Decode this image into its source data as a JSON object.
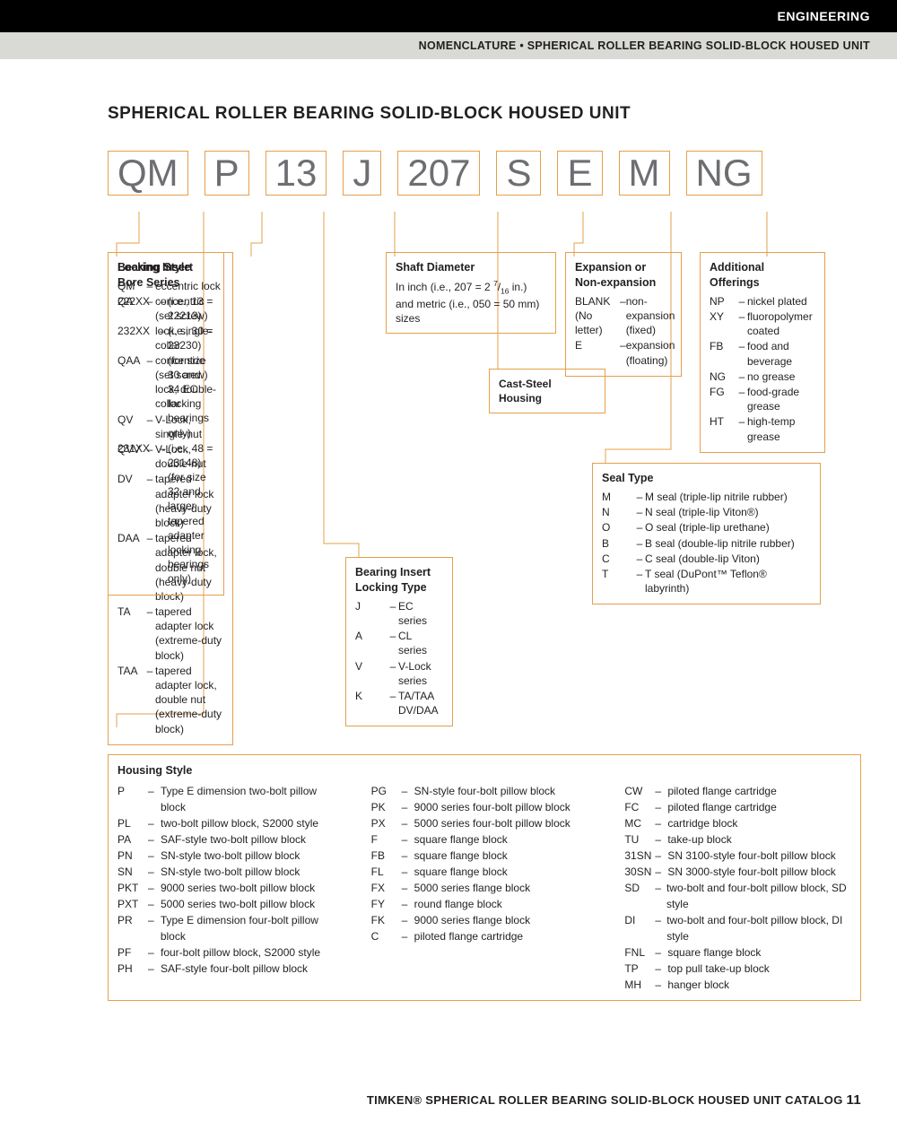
{
  "header": {
    "section": "ENGINEERING",
    "breadcrumb": "NOMENCLATURE • SPHERICAL ROLLER BEARING SOLID-BLOCK HOUSED UNIT"
  },
  "title": "SPHERICAL ROLLER BEARING SOLID-BLOCK HOUSED UNIT",
  "code_parts": [
    "QM",
    "P",
    "13",
    "J",
    "207",
    "S",
    "E",
    "M",
    "NG"
  ],
  "boxes": {
    "locking_style": {
      "title": "Locking Style",
      "items": [
        {
          "k": "QM",
          "v": "eccentric lock"
        },
        {
          "k": "QA",
          "v": "concentric (set screw) lock, single-collar"
        },
        {
          "k": "QAA",
          "v": "concentric (set screw) lock, double-collar"
        },
        {
          "k": "QV",
          "v": "V-Lock, single-nut"
        },
        {
          "k": "QVV",
          "v": "V-Lock, double-nut"
        },
        {
          "k": "DV",
          "v": "tapered adapter lock (heavy-duty block)"
        },
        {
          "k": "DAA",
          "v": "tapered adapter lock, double nut (heavy-duty block)"
        },
        {
          "k": "TA",
          "v": "tapered adapter lock (extreme-duty block)"
        },
        {
          "k": "TAA",
          "v": "tapered adapter lock, double nut (extreme-duty block)"
        }
      ]
    },
    "bore_series": {
      "title": "Bearing Insert Bore Series",
      "items": [
        {
          "k": "222XX",
          "v": "(i.e., 13 = 22213)"
        },
        {
          "k": "232XX",
          "v": "(i.e., 30 = 23230) (for size 30 and 34 EC locking bearings only)"
        },
        {
          "k": "231XX",
          "v": "(i.e., 48 = 23148) (for size 32 and larger tapered adapter locking bearings only)"
        }
      ]
    },
    "shaft_diameter": {
      "title": "Shaft Diameter",
      "text": "In inch (i.e., 207 = 2 7/16 in.) and metric (i.e., 050 = 50 mm) sizes"
    },
    "housing_callout": "Cast-Steel Housing",
    "expansion": {
      "title": "Expansion or Non-expansion",
      "items": [
        {
          "k": "BLANK (No letter)",
          "v": "non-expansion (fixed)"
        },
        {
          "k": "E",
          "v": "expansion (floating)"
        }
      ]
    },
    "additional": {
      "title": "Additional Offerings",
      "items": [
        {
          "k": "NP",
          "v": "nickel plated"
        },
        {
          "k": "XY",
          "v": "fluoropolymer coated"
        },
        {
          "k": "FB",
          "v": "food and beverage"
        },
        {
          "k": "NG",
          "v": "no grease"
        },
        {
          "k": "FG",
          "v": "food-grade grease"
        },
        {
          "k": "HT",
          "v": "high-temp grease"
        }
      ]
    },
    "locking_type": {
      "title": "Bearing Insert Locking Type",
      "items": [
        {
          "k": "J",
          "v": "EC series"
        },
        {
          "k": "A",
          "v": "CL series"
        },
        {
          "k": "V",
          "v": "V-Lock series"
        },
        {
          "k": "K",
          "v": "TA/TAA DV/DAA"
        }
      ]
    },
    "seal_type": {
      "title": "Seal Type",
      "items": [
        {
          "k": "M",
          "v": "M seal (triple-lip nitrile rubber)"
        },
        {
          "k": "N",
          "v": "N seal (triple-lip Viton®)"
        },
        {
          "k": "O",
          "v": "O seal (triple-lip urethane)"
        },
        {
          "k": "B",
          "v": "B seal (double-lip nitrile rubber)"
        },
        {
          "k": "C",
          "v": "C seal (double-lip Viton)"
        },
        {
          "k": "T",
          "v": "T seal (DuPont™ Teflon® labyrinth)"
        }
      ]
    }
  },
  "housing": {
    "title": "Housing Style",
    "col1": [
      {
        "k": "P",
        "v": "Type E dimension two-bolt pillow block"
      },
      {
        "k": "PL",
        "v": "two-bolt pillow block, S2000 style"
      },
      {
        "k": "PA",
        "v": "SAF-style two-bolt pillow block"
      },
      {
        "k": "PN",
        "v": "SN-style two-bolt pillow block"
      },
      {
        "k": "SN",
        "v": "SN-style two-bolt pillow block"
      },
      {
        "k": "PKT",
        "v": "9000 series two-bolt pillow block"
      },
      {
        "k": "PXT",
        "v": "5000 series two-bolt pillow block"
      },
      {
        "k": "PR",
        "v": "Type E dimension four-bolt pillow block"
      },
      {
        "k": "PF",
        "v": "four-bolt pillow block, S2000 style"
      },
      {
        "k": "PH",
        "v": "SAF-style four-bolt pillow block"
      }
    ],
    "col2": [
      {
        "k": "PG",
        "v": "SN-style four-bolt pillow block"
      },
      {
        "k": "PK",
        "v": "9000 series four-bolt pillow block"
      },
      {
        "k": "PX",
        "v": "5000 series four-bolt pillow block"
      },
      {
        "k": "F",
        "v": "square flange block"
      },
      {
        "k": "FB",
        "v": "square flange block"
      },
      {
        "k": "FL",
        "v": "square flange block"
      },
      {
        "k": "FX",
        "v": "5000 series flange block"
      },
      {
        "k": "FY",
        "v": "round flange block"
      },
      {
        "k": "FK",
        "v": "9000 series flange block"
      },
      {
        "k": "C",
        "v": "piloted flange cartridge"
      }
    ],
    "col3": [
      {
        "k": "CW",
        "v": "piloted flange cartridge"
      },
      {
        "k": "FC",
        "v": "piloted flange cartridge"
      },
      {
        "k": "MC",
        "v": "cartridge block"
      },
      {
        "k": "TU",
        "v": "take-up block"
      },
      {
        "k": "31SN",
        "v": "SN 3100-style four-bolt pillow block"
      },
      {
        "k": "30SN",
        "v": "SN 3000-style four-bolt pillow block"
      },
      {
        "k": "SD",
        "v": "two-bolt and four-bolt pillow block, SD style"
      },
      {
        "k": "DI",
        "v": "two-bolt and four-bolt pillow block, DI style"
      },
      {
        "k": "FNL",
        "v": "square flange block"
      },
      {
        "k": "TP",
        "v": "top pull take-up block"
      },
      {
        "k": "MH",
        "v": "hanger block"
      }
    ]
  },
  "footer": {
    "text": "TIMKEN® SPHERICAL ROLLER BEARING SOLID-BLOCK HOUSED UNIT CATALOG",
    "page": "11"
  },
  "colors": {
    "orange": "#e5a04b",
    "gray_text": "#6d6e71"
  }
}
